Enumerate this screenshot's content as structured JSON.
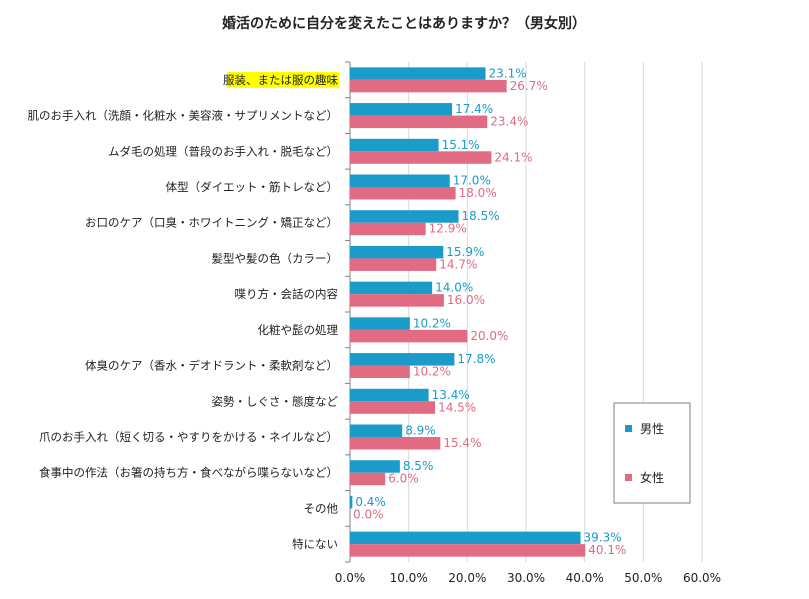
{
  "chart_data": {
    "type": "bar",
    "orientation": "horizontal",
    "title": "婚活のために自分を変えたことはありますか？（男女別）",
    "categories": [
      "服装、または服の趣味",
      "肌のお手入れ（洗顔・化粧水・美容液・サプリメントなど）",
      "ムダ毛の処理（普段のお手入れ・脱毛など）",
      "体型（ダイエット・筋トレなど）",
      "お口のケア（口臭・ホワイトニング・矯正など）",
      "髪型や髪の色（カラー）",
      "喋り方・会話の内容",
      "化粧や髭の処理",
      "体臭のケア（香水・デオドラント・柔軟剤など）",
      "姿勢・しぐさ・態度など",
      "爪のお手入れ（短く切る・やすりをかける・ネイルなど）",
      "食事中の作法（お箸の持ち方・食べながら喋らないなど）",
      "その他",
      "特にない"
    ],
    "highlight_category_index": 0,
    "series": [
      {
        "name": "男性",
        "color": "#1a9bc9",
        "values": [
          23.1,
          17.4,
          15.1,
          17.0,
          18.5,
          15.9,
          14.0,
          10.2,
          17.8,
          13.4,
          8.9,
          8.5,
          0.4,
          39.3
        ],
        "labels": [
          "23.1%",
          "17.4%",
          "15.1%",
          "17.0%",
          "18.5%",
          "15.9%",
          "14.0%",
          "10.2%",
          "17.8%",
          "13.4%",
          "8.9%",
          "8.5%",
          "0.4%",
          "39.3%"
        ]
      },
      {
        "name": "女性",
        "color": "#e06b82",
        "values": [
          26.7,
          23.4,
          24.1,
          18.0,
          12.9,
          14.7,
          16.0,
          20.0,
          10.2,
          14.5,
          15.4,
          6.0,
          0.0,
          40.1
        ],
        "labels": [
          "26.7%",
          "23.4%",
          "24.1%",
          "18.0%",
          "12.9%",
          "14.7%",
          "16.0%",
          "20.0%",
          "10.2%",
          "14.5%",
          "15.4%",
          "6.0%",
          "0.0%",
          "40.1%"
        ]
      }
    ],
    "xlim": [
      0,
      60
    ],
    "x_ticks": [
      0,
      10,
      20,
      30,
      40,
      50,
      60
    ],
    "x_tick_labels": [
      "0.0%",
      "10.0%",
      "20.0%",
      "30.0%",
      "40.0%",
      "50.0%",
      "60.0%"
    ],
    "grid": true,
    "legend_placement": "right",
    "highlight_color": "#ffff00"
  }
}
